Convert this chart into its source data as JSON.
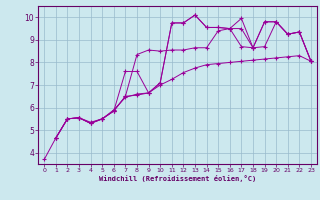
{
  "xlabel": "Windchill (Refroidissement éolien,°C)",
  "bg_color": "#cce8ee",
  "line_color": "#990099",
  "grid_color": "#99bbcc",
  "axis_color": "#660066",
  "spine_color": "#660066",
  "xlim": [
    -0.5,
    23.5
  ],
  "ylim": [
    3.5,
    10.5
  ],
  "xticks": [
    0,
    1,
    2,
    3,
    4,
    5,
    6,
    7,
    8,
    9,
    10,
    11,
    12,
    13,
    14,
    15,
    16,
    17,
    18,
    19,
    20,
    21,
    22,
    23
  ],
  "yticks": [
    4,
    5,
    6,
    7,
    8,
    9,
    10
  ],
  "lines": [
    {
      "x": [
        0,
        1,
        2,
        3,
        4,
        5,
        6,
        7,
        8,
        9,
        10,
        11,
        12,
        13,
        14,
        15,
        16,
        17,
        18,
        19,
        20,
        21,
        22,
        23
      ],
      "y": [
        3.7,
        4.65,
        5.5,
        5.55,
        5.35,
        5.5,
        5.9,
        6.45,
        6.6,
        6.65,
        7.0,
        7.25,
        7.55,
        7.75,
        7.9,
        7.95,
        8.0,
        8.05,
        8.1,
        8.15,
        8.2,
        8.25,
        8.3,
        8.05
      ]
    },
    {
      "x": [
        1,
        2,
        3,
        4,
        5,
        6,
        7,
        8,
        9,
        10,
        11,
        12,
        13,
        14,
        15,
        16,
        17,
        18,
        19,
        20,
        21,
        22,
        23
      ],
      "y": [
        4.65,
        5.5,
        5.55,
        5.3,
        5.5,
        5.85,
        6.5,
        8.35,
        8.55,
        8.5,
        8.55,
        8.55,
        8.65,
        8.65,
        9.4,
        9.5,
        8.7,
        8.65,
        8.7,
        9.8,
        9.25,
        9.35,
        8.05
      ]
    },
    {
      "x": [
        1,
        2,
        3,
        4,
        5,
        6,
        7,
        8,
        9,
        10,
        11,
        12,
        13,
        14,
        15,
        16,
        17,
        18,
        19,
        20,
        21,
        22,
        23
      ],
      "y": [
        4.65,
        5.5,
        5.55,
        5.3,
        5.5,
        5.85,
        7.6,
        7.6,
        6.65,
        7.1,
        9.75,
        9.75,
        10.1,
        9.55,
        9.55,
        9.5,
        9.5,
        8.65,
        9.8,
        9.8,
        9.25,
        9.35,
        8.05
      ]
    },
    {
      "x": [
        1,
        2,
        3,
        4,
        5,
        6,
        7,
        8,
        9,
        10,
        11,
        12,
        13,
        14,
        15,
        16,
        17,
        18,
        19,
        20,
        21,
        22,
        23
      ],
      "y": [
        4.65,
        5.5,
        5.55,
        5.3,
        5.5,
        5.85,
        6.5,
        6.55,
        6.65,
        7.1,
        9.75,
        9.75,
        10.1,
        9.55,
        9.55,
        9.5,
        9.95,
        8.65,
        9.8,
        9.8,
        9.25,
        9.35,
        8.05
      ]
    }
  ]
}
